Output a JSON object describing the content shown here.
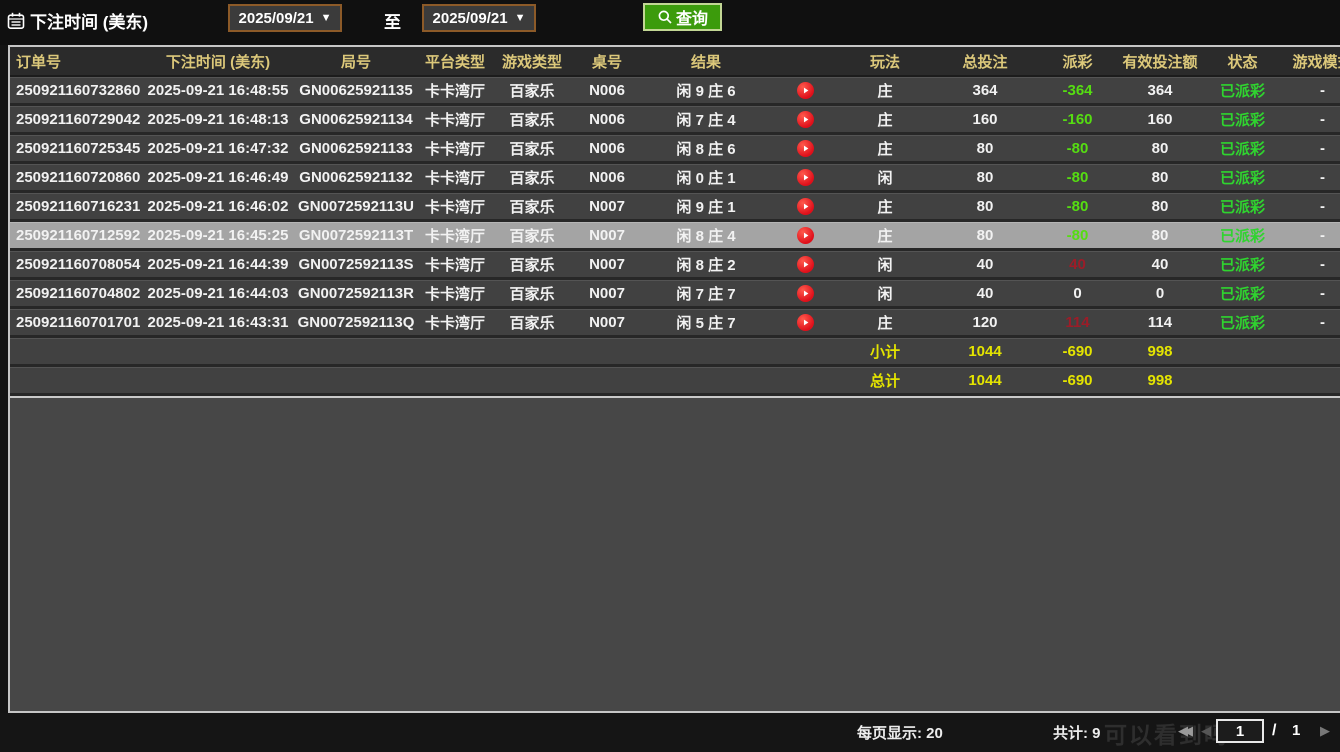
{
  "topbar": {
    "title": "下注时间 (美东)",
    "from_date": "2025/09/21",
    "to_label": "至",
    "to_date": "2025/09/21",
    "search_label": "查询",
    "dropdown_arrow": "▼"
  },
  "table": {
    "columns": [
      {
        "key": "order",
        "label": "订单号"
      },
      {
        "key": "time",
        "label": "下注时间 (美东)"
      },
      {
        "key": "round",
        "label": "局号"
      },
      {
        "key": "platform",
        "label": "平台类型"
      },
      {
        "key": "game",
        "label": "游戏类型"
      },
      {
        "key": "table",
        "label": "桌号"
      },
      {
        "key": "result",
        "label": "结果"
      },
      {
        "key": "video",
        "label": ""
      },
      {
        "key": "play",
        "label": "玩法"
      },
      {
        "key": "bet",
        "label": "总投注"
      },
      {
        "key": "payout",
        "label": "派彩"
      },
      {
        "key": "valid",
        "label": "有效投注额"
      },
      {
        "key": "status",
        "label": "状态"
      },
      {
        "key": "mode",
        "label": "游戏模式"
      }
    ],
    "rows": [
      {
        "order": "250921160732860",
        "time": "2025-09-21 16:48:55",
        "round": "GN00625921135",
        "platform": "卡卡湾厅",
        "game": "百家乐",
        "table": "N006",
        "result": "闲 9 庄 6",
        "play": "庄",
        "bet": "364",
        "payout": "-364",
        "payout_class": "neg",
        "valid": "364",
        "status": "已派彩",
        "mode": "-",
        "selected": false
      },
      {
        "order": "250921160729042",
        "time": "2025-09-21 16:48:13",
        "round": "GN00625921134",
        "platform": "卡卡湾厅",
        "game": "百家乐",
        "table": "N006",
        "result": "闲 7 庄 4",
        "play": "庄",
        "bet": "160",
        "payout": "-160",
        "payout_class": "neg",
        "valid": "160",
        "status": "已派彩",
        "mode": "-",
        "selected": false
      },
      {
        "order": "250921160725345",
        "time": "2025-09-21 16:47:32",
        "round": "GN00625921133",
        "platform": "卡卡湾厅",
        "game": "百家乐",
        "table": "N006",
        "result": "闲 8 庄 6",
        "play": "庄",
        "bet": "80",
        "payout": "-80",
        "payout_class": "neg",
        "valid": "80",
        "status": "已派彩",
        "mode": "-",
        "selected": false
      },
      {
        "order": "250921160720860",
        "time": "2025-09-21 16:46:49",
        "round": "GN00625921132",
        "platform": "卡卡湾厅",
        "game": "百家乐",
        "table": "N006",
        "result": "闲 0 庄 1",
        "play": "闲",
        "bet": "80",
        "payout": "-80",
        "payout_class": "neg",
        "valid": "80",
        "status": "已派彩",
        "mode": "-",
        "selected": false
      },
      {
        "order": "250921160716231",
        "time": "2025-09-21 16:46:02",
        "round": "GN0072592113U",
        "platform": "卡卡湾厅",
        "game": "百家乐",
        "table": "N007",
        "result": "闲 9 庄 1",
        "play": "庄",
        "bet": "80",
        "payout": "-80",
        "payout_class": "neg",
        "valid": "80",
        "status": "已派彩",
        "mode": "-",
        "selected": false
      },
      {
        "order": "250921160712592",
        "time": "2025-09-21 16:45:25",
        "round": "GN0072592113T",
        "platform": "卡卡湾厅",
        "game": "百家乐",
        "table": "N007",
        "result": "闲 8 庄 4",
        "play": "庄",
        "bet": "80",
        "payout": "-80",
        "payout_class": "neg",
        "valid": "80",
        "status": "已派彩",
        "mode": "-",
        "selected": true
      },
      {
        "order": "250921160708054",
        "time": "2025-09-21 16:44:39",
        "round": "GN0072592113S",
        "platform": "卡卡湾厅",
        "game": "百家乐",
        "table": "N007",
        "result": "闲 8 庄 2",
        "play": "闲",
        "bet": "40",
        "payout": "40",
        "payout_class": "pos",
        "valid": "40",
        "status": "已派彩",
        "mode": "-",
        "selected": false
      },
      {
        "order": "250921160704802",
        "time": "2025-09-21 16:44:03",
        "round": "GN0072592113R",
        "platform": "卡卡湾厅",
        "game": "百家乐",
        "table": "N007",
        "result": "闲 7 庄 7",
        "play": "闲",
        "bet": "40",
        "payout": "0",
        "payout_class": "zero",
        "valid": "0",
        "status": "已派彩",
        "mode": "-",
        "selected": false
      },
      {
        "order": "250921160701701",
        "time": "2025-09-21 16:43:31",
        "round": "GN0072592113Q",
        "platform": "卡卡湾厅",
        "game": "百家乐",
        "table": "N007",
        "result": "闲 5 庄 7",
        "play": "庄",
        "bet": "120",
        "payout": "114",
        "payout_class": "pos",
        "valid": "114",
        "status": "已派彩",
        "mode": "-",
        "selected": false
      }
    ],
    "subtotal": {
      "label": "小计",
      "bet": "1044",
      "payout": "-690",
      "valid": "998"
    },
    "grand_total": {
      "label": "总计",
      "bet": "1044",
      "payout": "-690",
      "valid": "998"
    }
  },
  "footer": {
    "per_page_label": "每页显示:",
    "per_page_value": "20",
    "total_label": "共计:",
    "total_value": "9",
    "page": "1",
    "page_separator": "/",
    "total_pages": "1",
    "watermark": "可以看到吗",
    "icons": {
      "first": "◀◀",
      "prev": "◀",
      "next": "▶"
    }
  },
  "colors": {
    "header_text": "#dcc87a",
    "payout_negative": "#55dd11",
    "payout_positive": "#9c1c28",
    "status_paid": "#2fd42f",
    "totals_yellow": "#e4e400",
    "search_button_green": "#3c9b0c",
    "date_border_brown": "#8c5a28",
    "selected_row_bg": "#a4a4a4",
    "row_bg": "#414141",
    "header_bg": "#2b2b2b"
  }
}
